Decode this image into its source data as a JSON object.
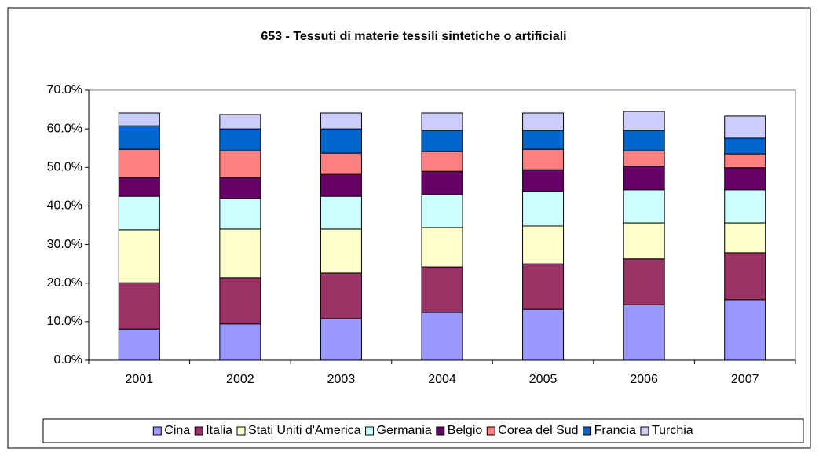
{
  "chart_data": {
    "type": "stacked_bar",
    "title": "653 - Tessuti di materie tessili sintetiche o artificiali",
    "categories": [
      "2001",
      "2002",
      "2003",
      "2004",
      "2005",
      "2006",
      "2007"
    ],
    "series": [
      {
        "name": "Cina",
        "color": "#9999ff",
        "values": [
          8.1,
          9.4,
          10.8,
          12.4,
          13.2,
          14.4,
          15.7
        ]
      },
      {
        "name": "Italia",
        "color": "#993366",
        "values": [
          12.0,
          12.0,
          11.8,
          11.8,
          11.8,
          11.9,
          12.2
        ]
      },
      {
        "name": "Stati Uniti d'America",
        "color": "#ffffcc",
        "values": [
          13.7,
          12.6,
          11.4,
          10.2,
          9.8,
          9.3,
          7.7
        ]
      },
      {
        "name": "Germania",
        "color": "#ccffff",
        "values": [
          8.7,
          7.9,
          8.5,
          8.5,
          9.0,
          8.6,
          8.6
        ]
      },
      {
        "name": "Belgio",
        "color": "#660066",
        "values": [
          4.9,
          5.5,
          5.7,
          6.1,
          5.6,
          6.1,
          5.7
        ]
      },
      {
        "name": "Corea del Sud",
        "color": "#ff8080",
        "values": [
          7.3,
          6.9,
          5.5,
          5.1,
          5.3,
          4.0,
          3.6
        ]
      },
      {
        "name": "Francia",
        "color": "#0066cc",
        "values": [
          6.1,
          5.7,
          6.3,
          5.5,
          4.9,
          5.3,
          4.1
        ]
      },
      {
        "name": "Turchia",
        "color": "#ccccff",
        "values": [
          3.3,
          3.7,
          4.1,
          4.5,
          4.5,
          4.9,
          5.7
        ]
      }
    ],
    "ylim": [
      0,
      70
    ],
    "yticks": [
      {
        "value": 0,
        "label": "0.0%"
      },
      {
        "value": 10,
        "label": "10.0%"
      },
      {
        "value": 20,
        "label": "20.0%"
      },
      {
        "value": 30,
        "label": "30.0%"
      },
      {
        "value": 40,
        "label": "40.0%"
      },
      {
        "value": 50,
        "label": "50.0%"
      },
      {
        "value": 60,
        "label": "60.0%"
      },
      {
        "value": 70,
        "label": "70.0%"
      }
    ],
    "legend": "bottom"
  }
}
